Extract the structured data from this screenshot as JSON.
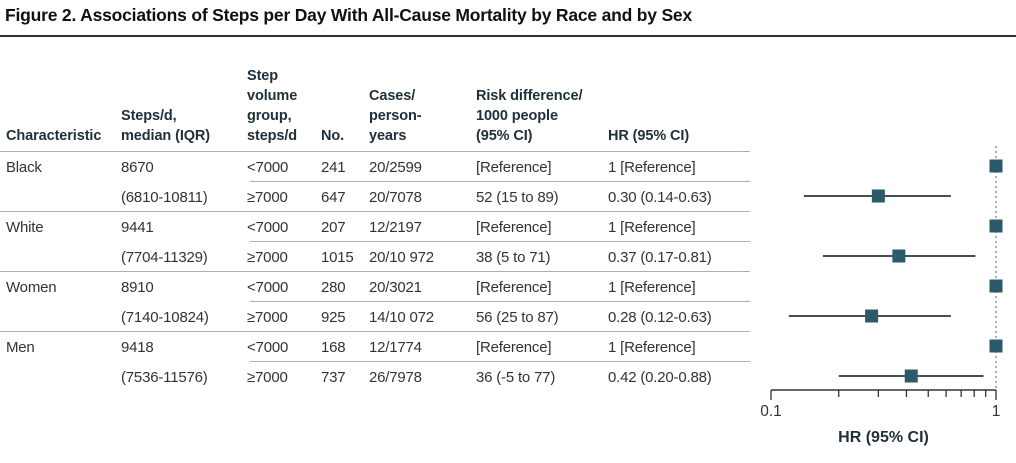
{
  "figure": {
    "title": "Figure 2. Associations of Steps per Day With All-Cause Mortality by Race and by Sex"
  },
  "table": {
    "headers": {
      "characteristic": "Characteristic",
      "steps_median": "Steps/d,\nmedian (IQR)",
      "step_volume_group": "Step\nvolume\ngroup,\nsteps/d",
      "no": "No.",
      "cases_person_years": "Cases/\nperson-\nyears",
      "risk_difference": "Risk difference/\n1000 people\n(95% CI)",
      "hr": "HR (95% CI)"
    },
    "rows": [
      {
        "characteristic": "Black",
        "steps_median": "8670",
        "group": "<7000",
        "no": "241",
        "cases": "20/2599",
        "risk_diff": "[Reference]",
        "hr": "1 [Reference]"
      },
      {
        "characteristic": "",
        "steps_median": "(6810-10811)",
        "group": "≥7000",
        "no": "647",
        "cases": "20/7078",
        "risk_diff": "52 (15 to 89)",
        "hr": "0.30 (0.14-0.63)"
      },
      {
        "characteristic": "White",
        "steps_median": "9441",
        "group": "<7000",
        "no": "207",
        "cases": "12/2197",
        "risk_diff": "[Reference]",
        "hr": "1 [Reference]"
      },
      {
        "characteristic": "",
        "steps_median": "(7704-11329)",
        "group": "≥7000",
        "no": "1015",
        "cases": "20/10 972",
        "risk_diff": "38 (5 to 71)",
        "hr": "0.37 (0.17-0.81)"
      },
      {
        "characteristic": "Women",
        "steps_median": "8910",
        "group": "<7000",
        "no": "280",
        "cases": "20/3021",
        "risk_diff": "[Reference]",
        "hr": "1 [Reference]"
      },
      {
        "characteristic": "",
        "steps_median": "(7140-10824)",
        "group": "≥7000",
        "no": "925",
        "cases": "14/10 072",
        "risk_diff": "56 (25 to 87)",
        "hr": "0.28 (0.12-0.63)"
      },
      {
        "characteristic": "Men",
        "steps_median": "9418",
        "group": "<7000",
        "no": "168",
        "cases": "12/1774",
        "risk_diff": "[Reference]",
        "hr": "1 [Reference]"
      },
      {
        "characteristic": "",
        "steps_median": "(7536-11576)",
        "group": "≥7000",
        "no": "737",
        "cases": "26/7978",
        "risk_diff": "36 (-5 to 77)",
        "hr": "0.42 (0.20-0.88)"
      }
    ]
  },
  "chart_data": {
    "type": "scatter",
    "subtype": "forest-plot",
    "xlabel": "HR (95% CI)",
    "x_scale": "log",
    "xlim": [
      0.1,
      1
    ],
    "x_ticks": [
      0.1,
      0.2,
      0.3,
      0.4,
      0.5,
      0.6,
      0.7,
      0.8,
      0.9,
      1
    ],
    "x_tick_labels": [
      {
        "value": 0.1,
        "label": "0.1"
      },
      {
        "value": 1,
        "label": "1"
      }
    ],
    "reference_line_x": 1,
    "grid": false,
    "points": [
      {
        "row": "Black <7000",
        "hr": 1.0,
        "reference": true
      },
      {
        "row": "Black ≥7000",
        "hr": 0.3,
        "ci_low": 0.14,
        "ci_high": 0.63
      },
      {
        "row": "White <7000",
        "hr": 1.0,
        "reference": true
      },
      {
        "row": "White ≥7000",
        "hr": 0.37,
        "ci_low": 0.17,
        "ci_high": 0.81
      },
      {
        "row": "Women <7000",
        "hr": 1.0,
        "reference": true
      },
      {
        "row": "Women ≥7000",
        "hr": 0.28,
        "ci_low": 0.12,
        "ci_high": 0.63
      },
      {
        "row": "Men <7000",
        "hr": 1.0,
        "reference": true
      },
      {
        "row": "Men ≥7000",
        "hr": 0.42,
        "ci_low": 0.2,
        "ci_high": 0.88
      }
    ],
    "colors": {
      "marker": "#2d5a6b",
      "ci_line": "#4d4d4d",
      "reference_line": "#8c8c8c",
      "axis": "#333333",
      "separator": "#a3b2bc"
    }
  }
}
